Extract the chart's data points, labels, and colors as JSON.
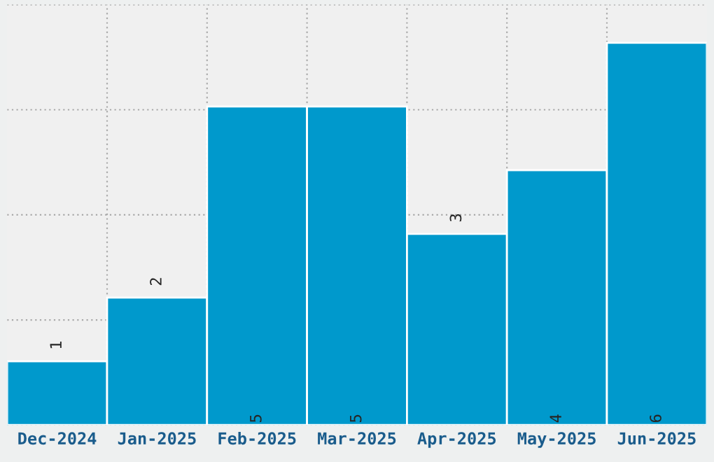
{
  "chart_data": {
    "type": "bar",
    "categories": [
      "Dec-2024",
      "Jan-2025",
      "Feb-2025",
      "Mar-2025",
      "Apr-2025",
      "May-2025",
      "Jun-2025"
    ],
    "values": [
      1,
      2,
      5,
      5,
      3,
      4,
      6
    ],
    "color": "#0099cc",
    "data_labels": true,
    "grid": true,
    "tick_labels": "x"
  }
}
